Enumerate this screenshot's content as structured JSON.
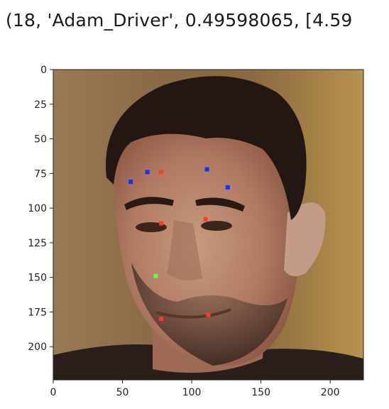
{
  "output_text": "(18, 'Adam_Driver', 0.49598065, [4.59",
  "colors": {
    "blue": "#1230ff",
    "red": "#ff3a2a",
    "green": "#5cff4a",
    "axis": "#222222"
  },
  "chart_data": {
    "type": "scatter",
    "title": "",
    "xlabel": "",
    "ylabel": "",
    "xlim": [
      0,
      224
    ],
    "ylim": [
      224,
      0
    ],
    "y_inverted": true,
    "x_ticks": [
      0,
      50,
      100,
      150,
      200
    ],
    "y_ticks": [
      0,
      25,
      50,
      75,
      100,
      125,
      150,
      175,
      200
    ],
    "grid": false,
    "background": "face photograph",
    "series": [
      {
        "color": "#1230ff",
        "points": [
          [
            56,
            81
          ],
          [
            68,
            74
          ],
          [
            111,
            72
          ],
          [
            126,
            85
          ]
        ]
      },
      {
        "color": "#ff3a2a",
        "points": [
          [
            78,
            74
          ],
          [
            78,
            111
          ],
          [
            110,
            108
          ],
          [
            78,
            180
          ],
          [
            112,
            177
          ]
        ]
      },
      {
        "color": "#5cff4a",
        "points": [
          [
            74,
            149
          ]
        ]
      }
    ]
  }
}
